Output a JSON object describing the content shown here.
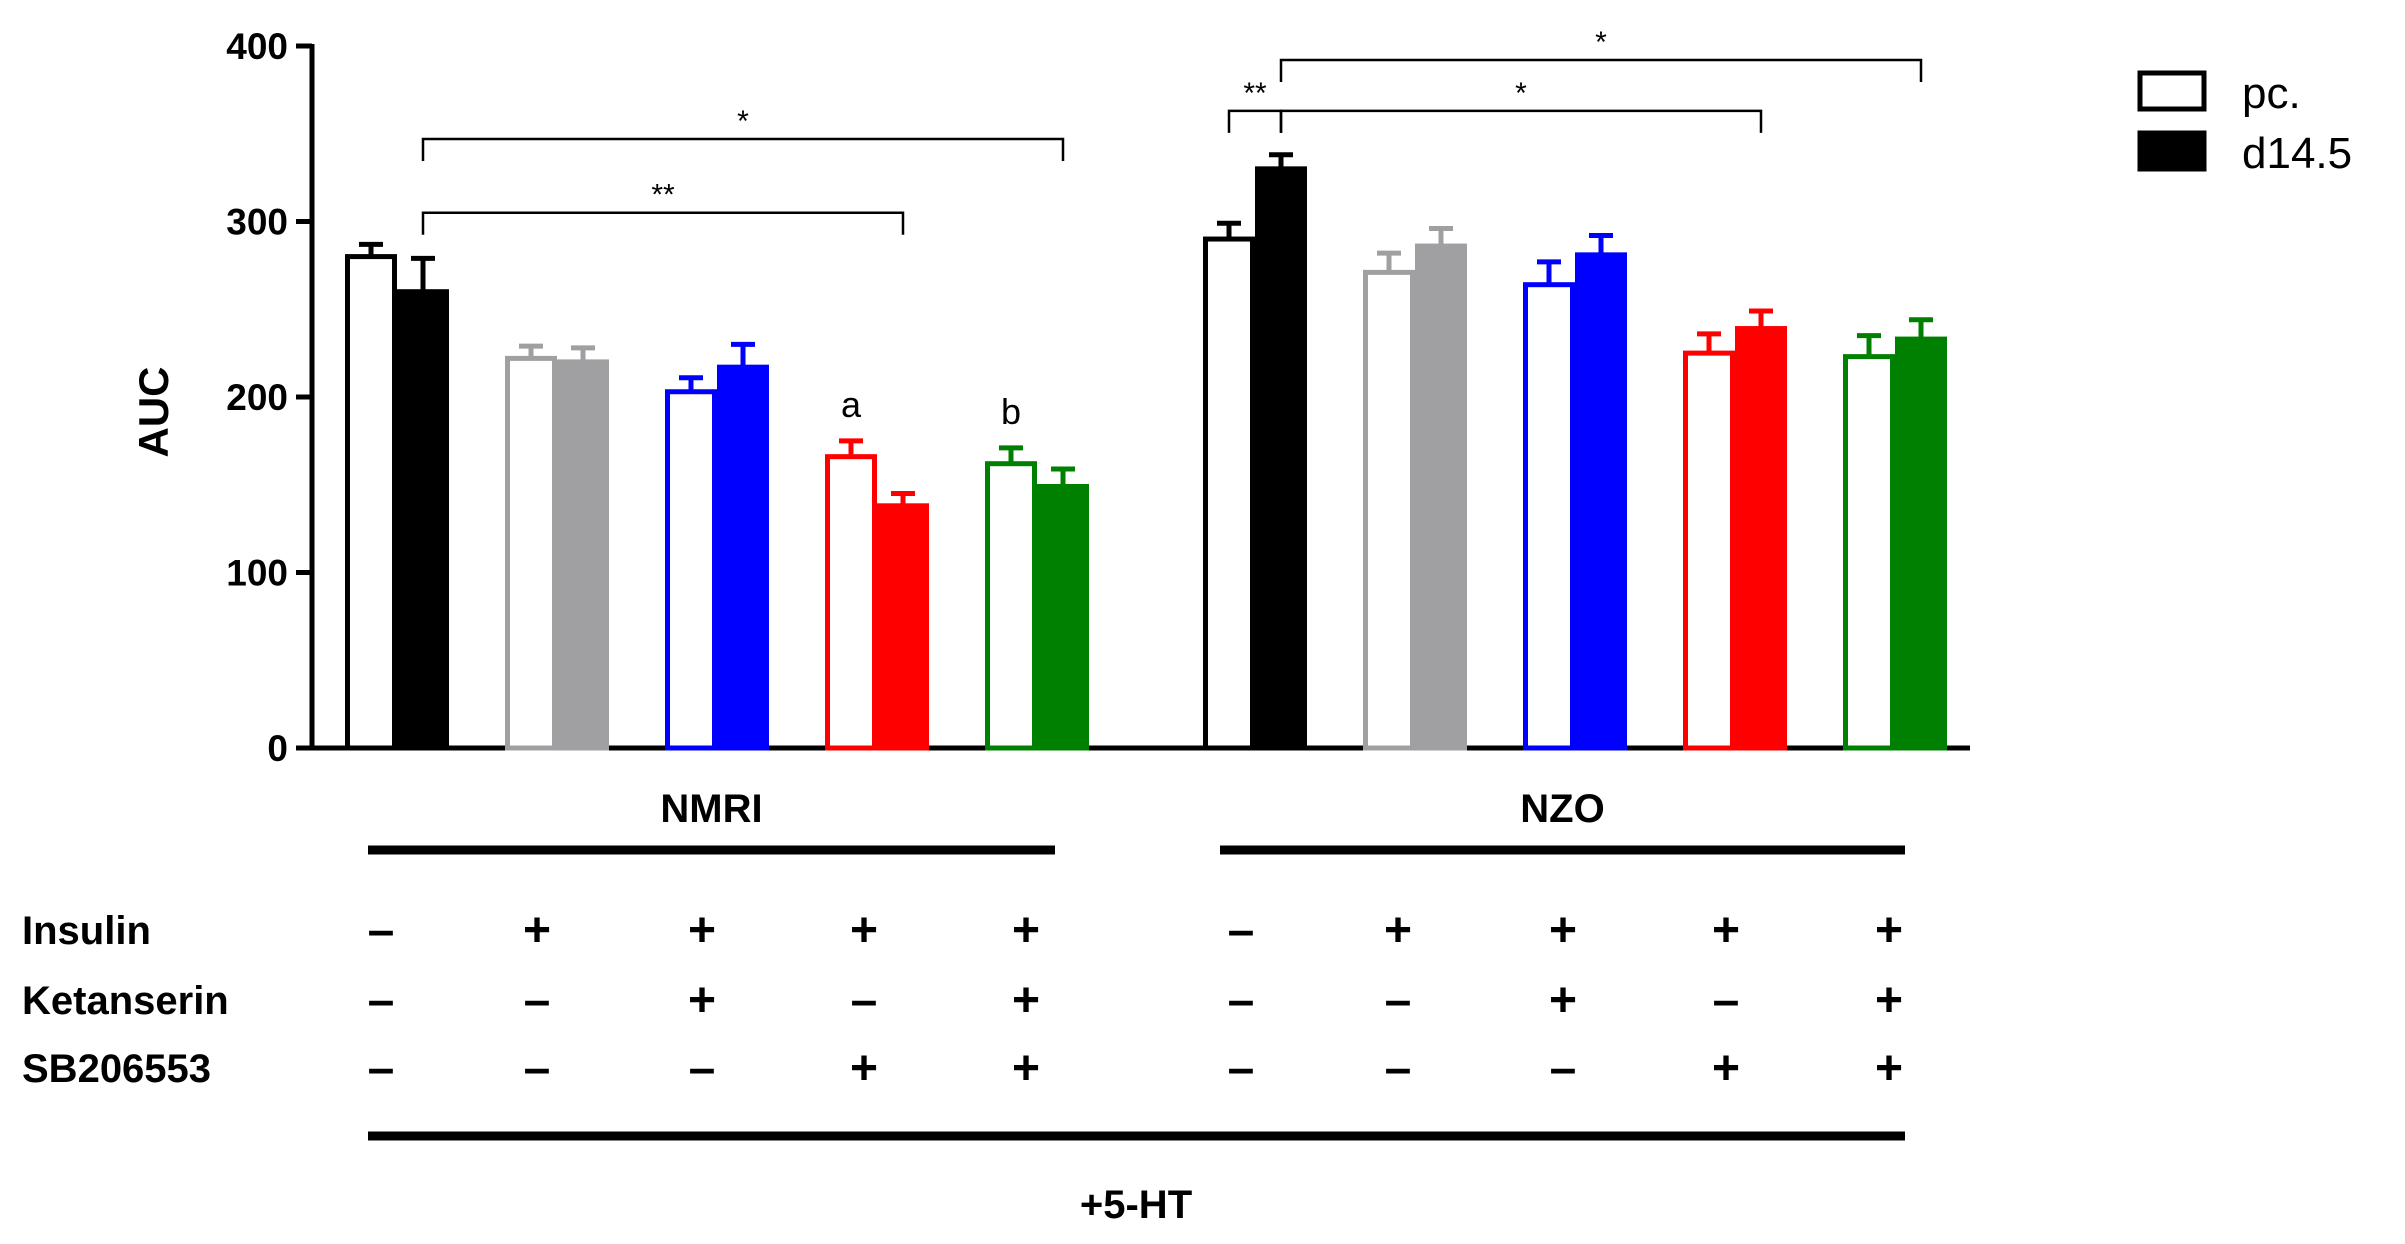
{
  "chart_data": {
    "type": "bar",
    "ylabel": "AUC",
    "ylim": [
      0,
      400
    ],
    "yticks": [
      0,
      100,
      200,
      300,
      400
    ],
    "legend": [
      {
        "label": "pc.",
        "style": "open"
      },
      {
        "label": "d14.5",
        "style": "filled"
      }
    ],
    "treatment_colors": [
      "#000000",
      "#a0a0a2",
      "#0000ff",
      "#ff0000",
      "#008000"
    ],
    "groups": [
      {
        "name": "NMRI",
        "bars": [
          {
            "pc": 280,
            "pc_err": 7,
            "d": 260,
            "d_err": 19
          },
          {
            "pc": 222,
            "pc_err": 7,
            "d": 220,
            "d_err": 8
          },
          {
            "pc": 203,
            "pc_err": 8,
            "d": 217,
            "d_err": 13
          },
          {
            "pc": 166,
            "pc_err": 9,
            "d": 138,
            "d_err": 7
          },
          {
            "pc": 162,
            "pc_err": 9,
            "d": 149,
            "d_err": 10
          }
        ]
      },
      {
        "name": "NZO",
        "bars": [
          {
            "pc": 290,
            "pc_err": 9,
            "d": 330,
            "d_err": 8
          },
          {
            "pc": 271,
            "pc_err": 11,
            "d": 286,
            "d_err": 10
          },
          {
            "pc": 264,
            "pc_err": 13,
            "d": 281,
            "d_err": 11
          },
          {
            "pc": 225,
            "pc_err": 11,
            "d": 239,
            "d_err": 10
          },
          {
            "pc": 223,
            "pc_err": 12,
            "d": 233,
            "d_err": 11
          }
        ]
      }
    ],
    "annotations": {
      "letters": [
        {
          "text": "a",
          "group": 0,
          "treatment": 3
        },
        {
          "text": "b",
          "group": 0,
          "treatment": 4
        }
      ],
      "brackets": [
        {
          "group": 0,
          "from": [
            0,
            "d"
          ],
          "to": [
            4,
            "d"
          ],
          "level": 347,
          "label": "*"
        },
        {
          "group": 0,
          "from": [
            0,
            "d"
          ],
          "to": [
            3,
            "d"
          ],
          "level": 305,
          "label": "**"
        },
        {
          "group": 1,
          "from": [
            0,
            "pc"
          ],
          "to": [
            0,
            "d"
          ],
          "level": 363,
          "label": "**"
        },
        {
          "group": 1,
          "from": [
            0,
            "d"
          ],
          "to": [
            3,
            "d"
          ],
          "level": 363,
          "label": "*"
        },
        {
          "group": 1,
          "from": [
            0,
            "d"
          ],
          "to": [
            4,
            "d"
          ],
          "level": 392,
          "label": "*"
        }
      ]
    },
    "treatments": {
      "rows": [
        {
          "label": "Insulin",
          "signs": [
            "–",
            "+",
            "+",
            "+",
            "+"
          ]
        },
        {
          "label": "Ketanserin",
          "signs": [
            "–",
            "–",
            "+",
            "–",
            "+"
          ]
        },
        {
          "label": "SB206553",
          "signs": [
            "–",
            "–",
            "–",
            "+",
            "+"
          ]
        }
      ],
      "footer": "+5-HT"
    }
  }
}
